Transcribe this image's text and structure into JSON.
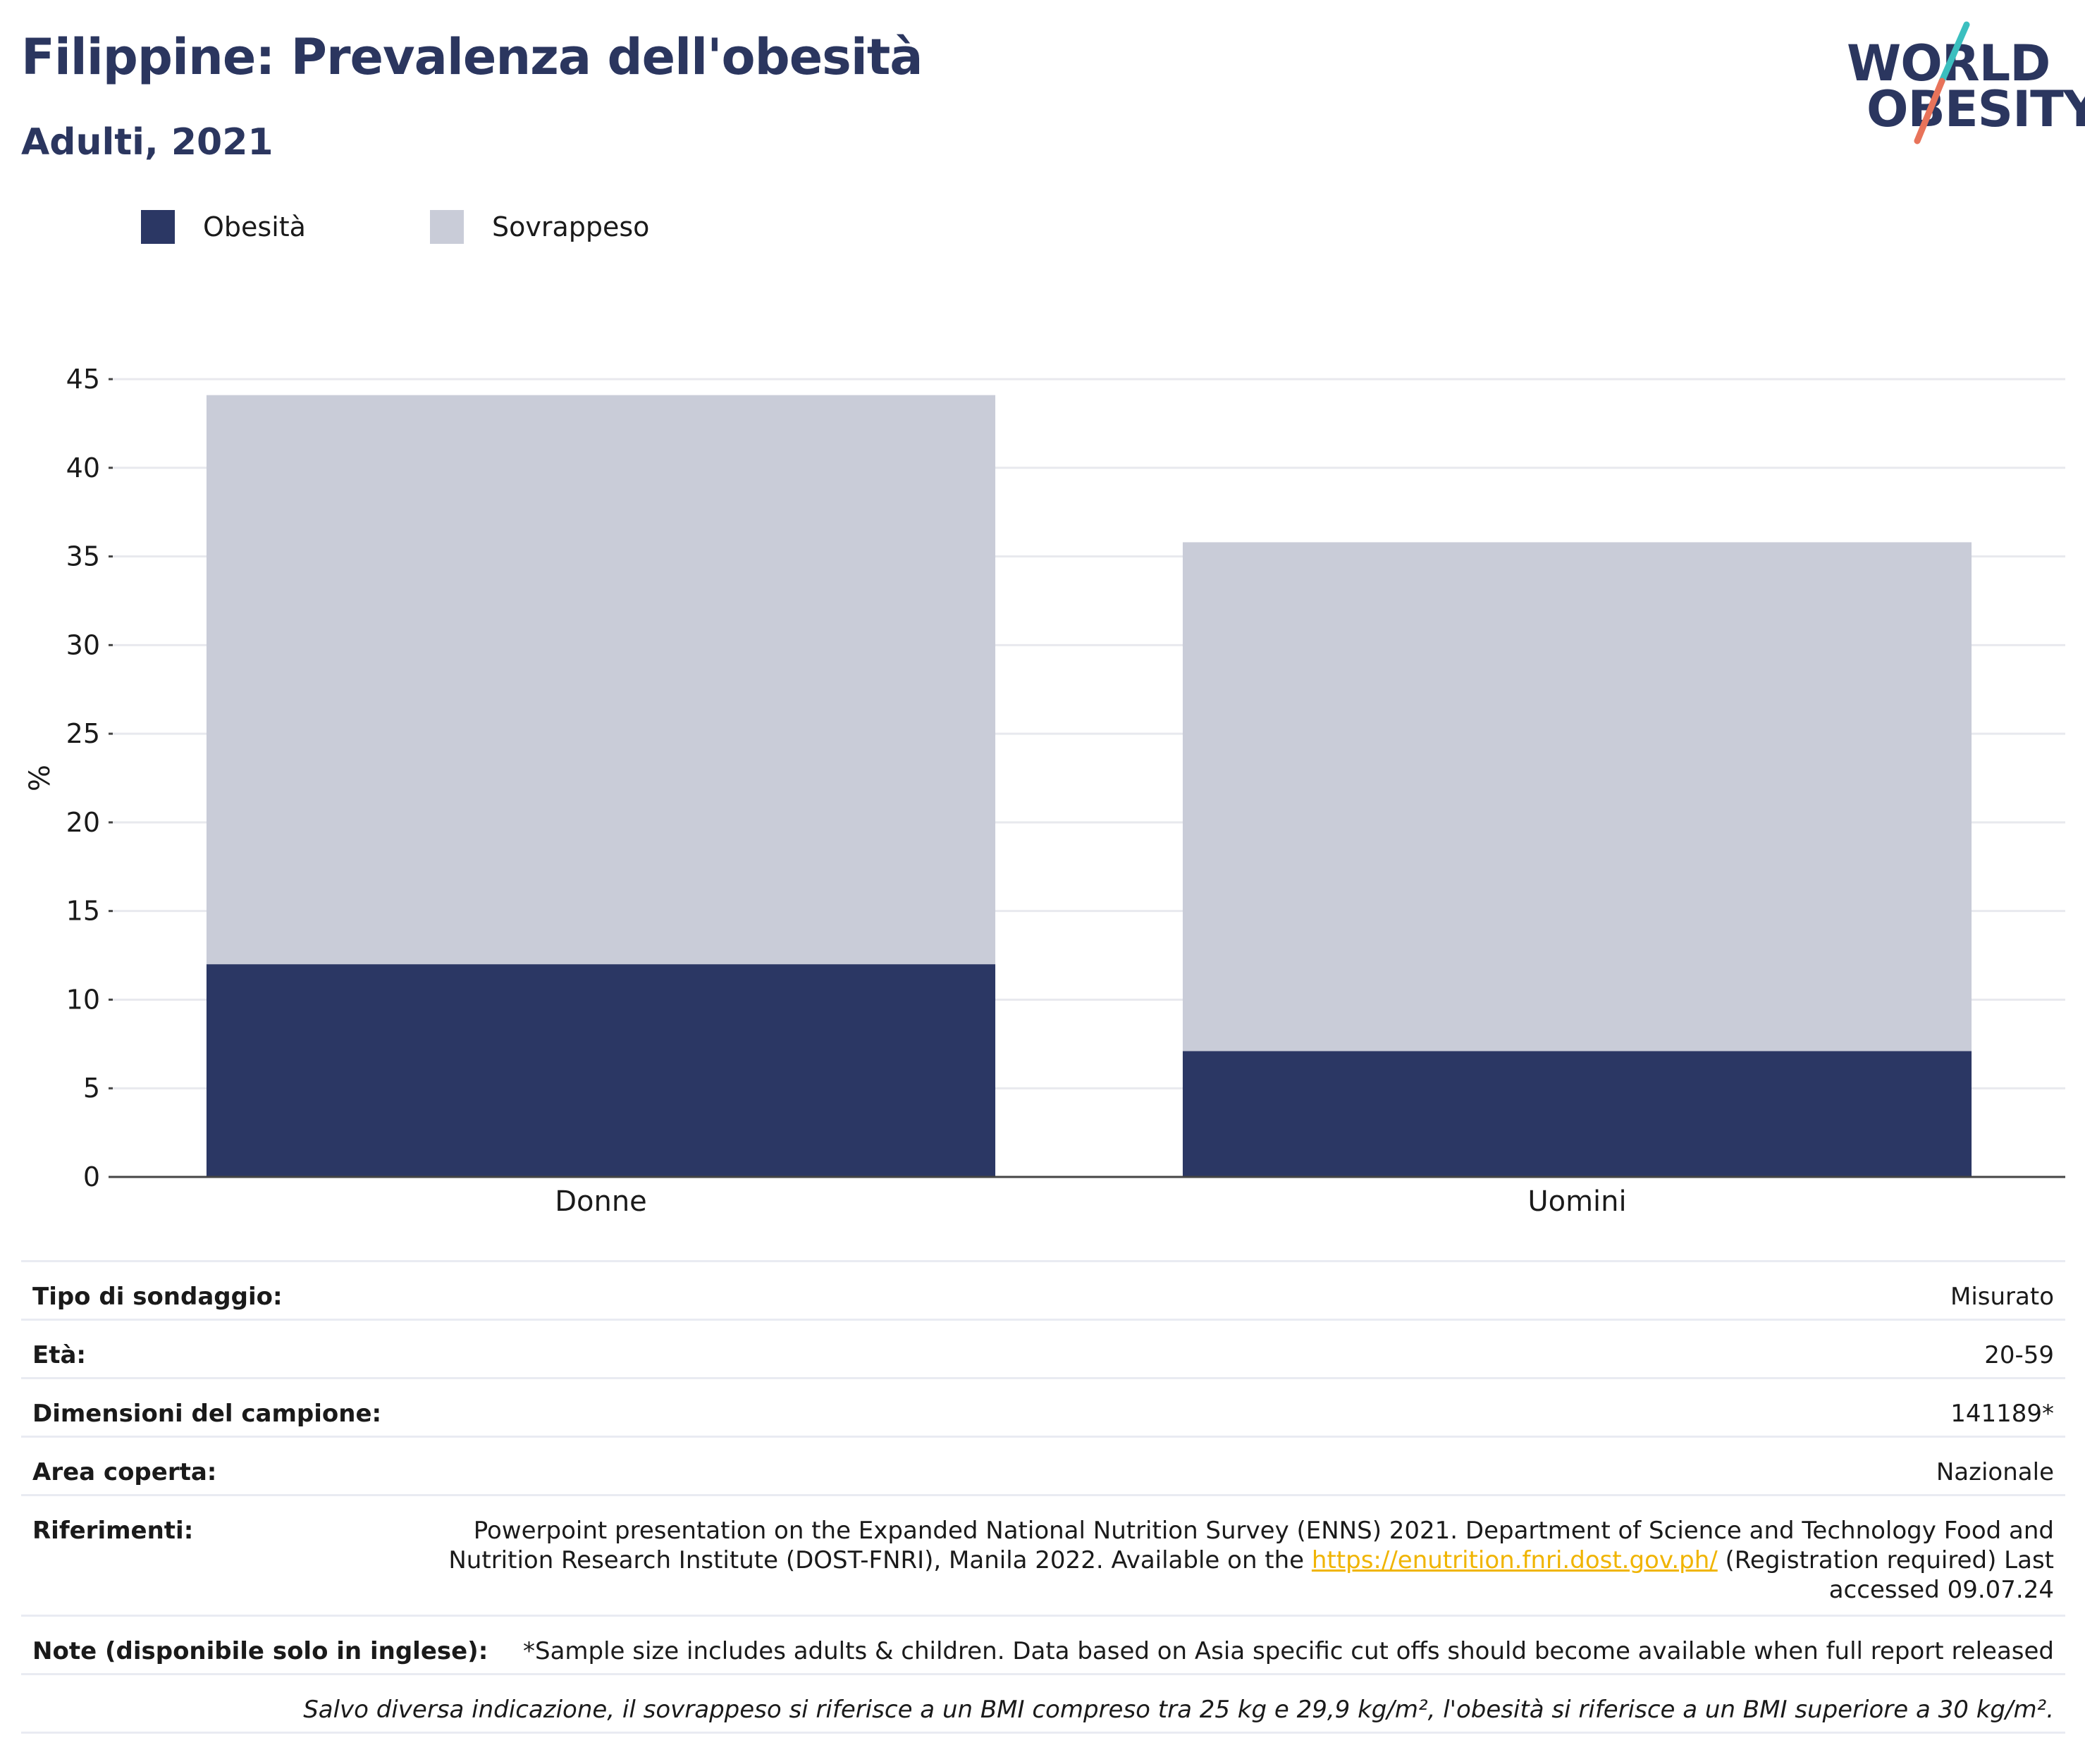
{
  "header": {
    "title": "Filippine: Prevalenza dell'obesità",
    "subtitle": "Adulti, 2021"
  },
  "logo": {
    "line1": "WORLD",
    "line2": "OBESITY",
    "accent_teal": "#3bbfbf",
    "accent_coral": "#e8735a"
  },
  "legend": [
    {
      "label": "Obesità",
      "color": "#2b3764"
    },
    {
      "label": "Sovrappeso",
      "color": "#c9ccd8"
    }
  ],
  "chart_data": {
    "type": "bar",
    "stacked": true,
    "title": "",
    "xlabel": "",
    "ylabel": "%",
    "categories": [
      "Donne",
      "Uomini"
    ],
    "series": [
      {
        "name": "Obesità",
        "values": [
          12.0,
          7.1
        ],
        "color": "#2b3764"
      },
      {
        "name": "Sovrappeso",
        "values": [
          32.1,
          28.7
        ],
        "color": "#c9ccd8"
      }
    ],
    "ylim": [
      0,
      45
    ],
    "yticks": [
      0,
      5,
      10,
      15,
      20,
      25,
      30,
      35,
      40,
      45
    ],
    "grid": true,
    "legend_position": "top-left"
  },
  "info": {
    "rows": [
      {
        "key": "Tipo di sondaggio:",
        "value": "Misurato"
      },
      {
        "key": "Età:",
        "value": "20-59"
      },
      {
        "key": "Dimensioni del campione:",
        "value": "141189*"
      },
      {
        "key": "Area coperta:",
        "value": "Nazionale"
      }
    ],
    "references": {
      "key": "Riferimenti:",
      "line1": "Powerpoint presentation on the Expanded National Nutrition Survey (ENNS) 2021. Department of Science and Technology Food and",
      "line2_pre": "Nutrition Research Institute (DOST-FNRI), Manila 2022. Available on the ",
      "link": "https://enutrition.fnri.dost.gov.ph/",
      "line2_post": " (Registration required) Last",
      "line3": "accessed 09.07.24"
    },
    "notes": {
      "key": "Note (disponibile solo in inglese):",
      "value": "*Sample size includes adults & children. Data based on Asia specific cut offs should become available when full report released"
    },
    "footnote": "Salvo diversa indicazione, il sovrappeso si riferisce a un BMI compreso tra 25 kg e 29,9 kg/m², l'obesità si riferisce a un BMI superiore a 30 kg/m²."
  }
}
